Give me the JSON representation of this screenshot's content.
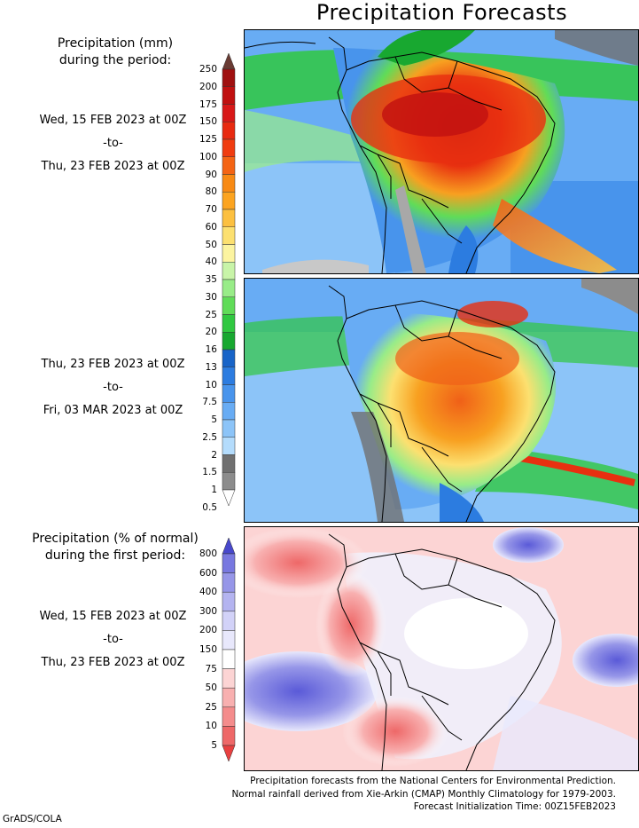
{
  "title": "Precipitation Forecasts",
  "section1": {
    "title_line1": "Precipitation (mm)",
    "title_line2": "during the period:",
    "period1": {
      "start": "Wed, 15 FEB 2023 at 00Z",
      "sep": "-to-",
      "end": "Thu, 23 FEB 2023 at 00Z"
    },
    "period2": {
      "start": "Thu, 23 FEB 2023 at 00Z",
      "sep": "-to-",
      "end": "Fri, 03 MAR 2023 at 00Z"
    }
  },
  "section2": {
    "title_line1": "Precipitation (% of normal)",
    "title_line2": "during the first period:",
    "period": {
      "start": "Wed, 15 FEB 2023 at 00Z",
      "sep": "-to-",
      "end": "Thu, 23 FEB 2023 at 00Z"
    }
  },
  "precip_colorbar": {
    "labels": [
      "250",
      "200",
      "175",
      "150",
      "125",
      "100",
      "90",
      "80",
      "70",
      "60",
      "50",
      "40",
      "35",
      "30",
      "25",
      "20",
      "16",
      "13",
      "10",
      "7.5",
      "5",
      "2.5",
      "2",
      "1.5",
      "1",
      "0.5"
    ],
    "colors": [
      "#a01010",
      "#c01010",
      "#d81818",
      "#e82a10",
      "#f03c10",
      "#f46414",
      "#f88a14",
      "#fca420",
      "#fcc040",
      "#fce070",
      "#fcf4a0",
      "#c8f4a8",
      "#98ec88",
      "#60dc58",
      "#30c840",
      "#18a830",
      "#1864c8",
      "#2c7ce0",
      "#4894ec",
      "#68acf4",
      "#8cc4f8",
      "#b4dcfc",
      "#707070",
      "#8c8c8c",
      "#a8a8a8",
      "#c8c8c8"
    ],
    "top_color": "#6a3c34"
  },
  "pct_colorbar": {
    "labels": [
      "800",
      "600",
      "400",
      "300",
      "200",
      "150",
      "75",
      "50",
      "25",
      "10",
      "5"
    ],
    "colors": [
      "#5a5ad8",
      "#7878e0",
      "#9696e8",
      "#b4b4f0",
      "#d2d2f8",
      "#e8e8fc",
      "#ffffff",
      "#fcd4d4",
      "#f8b0b0",
      "#f48c8c",
      "#ee6868",
      "#e84848"
    ],
    "top_color": "#4848cc",
    "bottom_color": "#e84040"
  },
  "footer": {
    "line1": "Precipitation forecasts from the National Centers for Environmental Prediction.",
    "line2": "Normal rainfall derived from Xie-Arkin (CMAP) Monthly Climatology for 1979-2003.",
    "line3": "Forecast Initialization Time: 00Z15FEB2023"
  },
  "credit": "GrADS/COLA"
}
